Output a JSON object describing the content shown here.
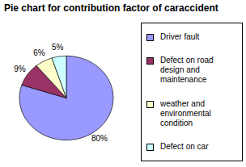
{
  "chart_data": {
    "type": "pie",
    "title": "Pie chart for contribution factor of caraccident",
    "categories": [
      "Driver fault",
      "Defect on road design and maintenance",
      "weather and environmental condition",
      "Defect on car"
    ],
    "values": [
      80,
      9,
      6,
      5
    ],
    "value_labels": [
      "80%",
      "9%",
      "6%",
      "5%"
    ],
    "colors": [
      "#9999ff",
      "#993366",
      "#ffffcc",
      "#ccffff"
    ],
    "data_labels": true,
    "legend": "right"
  }
}
